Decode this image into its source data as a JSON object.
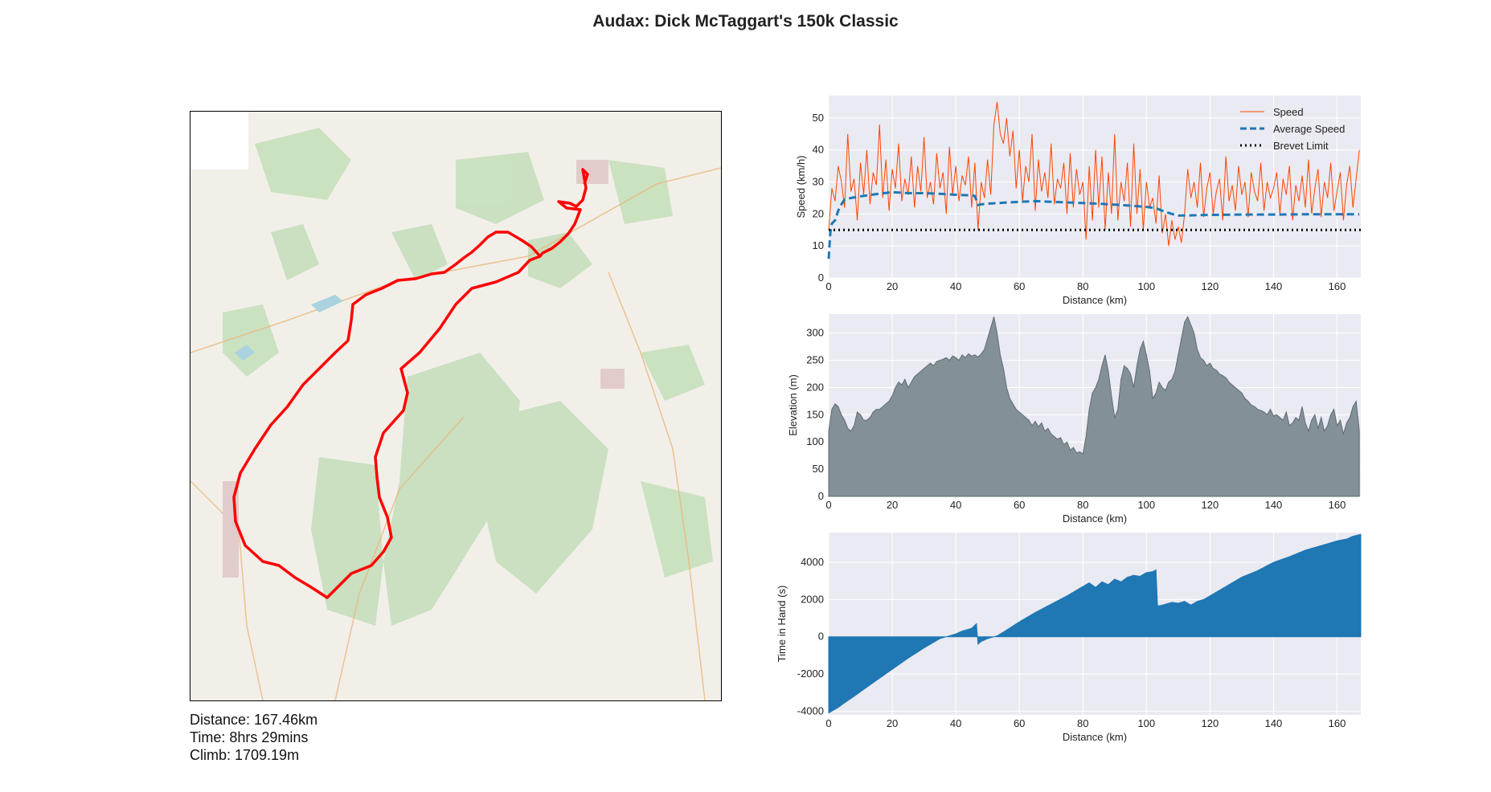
{
  "title": "Audax: Dick McTaggart's 150k Classic",
  "stats": {
    "distance": "Distance: 167.46km",
    "time": "Time: 8hrs 29mins",
    "climb": "Climb: 1709.19m"
  },
  "colors": {
    "speed": "#ff4500",
    "avg_speed": "#1f77b4",
    "brevet": "#000000",
    "elevation": "#7d8b8f",
    "time_in_hand": "#1f77b4",
    "route": "#ff0000",
    "plot_bg": "#eaeaf2"
  },
  "chart_data": [
    {
      "type": "line",
      "xlabel": "Distance (km)",
      "ylabel": "Speed (km/h)",
      "xlim": [
        0,
        167.46
      ],
      "ylim": [
        0,
        57
      ],
      "xticks": [
        0,
        20,
        40,
        60,
        80,
        100,
        120,
        140,
        160
      ],
      "yticks": [
        0,
        10,
        20,
        30,
        40,
        50
      ],
      "legend_position": "top-right",
      "series": [
        {
          "name": "Speed",
          "style": "line",
          "x": [
            0,
            1,
            2,
            3,
            4,
            5,
            6,
            7,
            8,
            9,
            10,
            11,
            12,
            13,
            14,
            15,
            16,
            17,
            18,
            19,
            20,
            21,
            22,
            23,
            24,
            25,
            26,
            27,
            28,
            29,
            30,
            31,
            32,
            33,
            34,
            35,
            36,
            37,
            38,
            39,
            40,
            41,
            42,
            43,
            44,
            45,
            46,
            47,
            48,
            49,
            50,
            51,
            52,
            53,
            54,
            55,
            56,
            57,
            58,
            59,
            60,
            61,
            62,
            63,
            64,
            65,
            66,
            67,
            68,
            69,
            70,
            71,
            72,
            73,
            74,
            75,
            76,
            77,
            78,
            79,
            80,
            81,
            82,
            83,
            84,
            85,
            86,
            87,
            88,
            89,
            90,
            91,
            92,
            93,
            94,
            95,
            96,
            97,
            98,
            99,
            100,
            101,
            102,
            103,
            104,
            105,
            106,
            107,
            108,
            109,
            110,
            111,
            112,
            113,
            114,
            115,
            116,
            117,
            118,
            119,
            120,
            121,
            122,
            123,
            124,
            125,
            126,
            127,
            128,
            129,
            130,
            131,
            132,
            133,
            134,
            135,
            136,
            137,
            138,
            139,
            140,
            141,
            142,
            143,
            144,
            145,
            146,
            147,
            148,
            149,
            150,
            151,
            152,
            153,
            154,
            155,
            156,
            157,
            158,
            159,
            160,
            161,
            162,
            163,
            164,
            165,
            166,
            167
          ],
          "y": [
            15,
            28,
            24,
            35,
            30,
            22,
            45,
            27,
            31,
            18,
            36,
            26,
            40,
            23,
            33,
            29,
            48,
            25,
            37,
            21,
            34,
            28,
            42,
            24,
            31,
            26,
            38,
            22,
            35,
            27,
            44,
            25,
            30,
            23,
            39,
            28,
            33,
            20,
            41,
            26,
            35,
            24,
            32,
            29,
            38,
            22,
            36,
            15,
            30,
            25,
            37,
            26,
            48,
            55,
            45,
            42,
            50,
            38,
            46,
            28,
            40,
            24,
            35,
            30,
            45,
            21,
            37,
            27,
            33,
            25,
            42,
            23,
            31,
            28,
            36,
            20,
            39,
            22,
            34,
            26,
            30,
            12,
            35,
            18,
            40,
            22,
            38,
            15,
            33,
            20,
            45,
            18,
            30,
            24,
            36,
            16,
            42,
            20,
            34,
            15,
            30,
            22,
            25,
            17,
            32,
            14,
            20,
            10,
            18,
            12,
            16,
            11,
            20,
            34,
            25,
            30,
            22,
            36,
            19,
            28,
            33,
            20,
            27,
            31,
            18,
            38,
            24,
            29,
            21,
            35,
            26,
            30,
            19,
            33,
            27,
            24,
            36,
            21,
            30,
            25,
            28,
            33,
            20,
            31,
            26,
            35,
            18,
            29,
            24,
            32,
            22,
            37,
            20,
            28,
            34,
            19,
            30,
            25,
            36,
            21,
            27,
            33,
            18,
            29,
            35,
            22,
            31,
            40
          ]
        },
        {
          "name": "Average Speed",
          "style": "dashed",
          "x": [
            0,
            0.5,
            1,
            2,
            3,
            4,
            5,
            7,
            10,
            15,
            20,
            25,
            30,
            35,
            40,
            45,
            46,
            47,
            48,
            50,
            55,
            60,
            65,
            70,
            75,
            80,
            85,
            90,
            95,
            100,
            103,
            105,
            108,
            110,
            115,
            120,
            130,
            140,
            150,
            160,
            167
          ],
          "y": [
            6,
            14,
            17,
            18,
            21,
            23,
            24.5,
            25,
            25.5,
            26.2,
            26.8,
            26.5,
            26.5,
            26.3,
            26,
            25.8,
            25.6,
            22.8,
            23,
            23.2,
            23.5,
            23.8,
            24,
            23.8,
            23.6,
            23.4,
            23.2,
            22.9,
            22.6,
            22.2,
            21.8,
            21,
            20,
            19.5,
            19.6,
            19.7,
            19.8,
            19.8,
            19.9,
            19.9,
            19.9
          ]
        },
        {
          "name": "Brevet Limit",
          "style": "dotted",
          "x": [
            0,
            167.46
          ],
          "y": [
            15,
            15
          ]
        }
      ]
    },
    {
      "type": "area",
      "xlabel": "Distance (km)",
      "ylabel": "Elevation (m)",
      "xlim": [
        0,
        167.46
      ],
      "ylim": [
        0,
        335
      ],
      "xticks": [
        0,
        20,
        40,
        60,
        80,
        100,
        120,
        140,
        160
      ],
      "yticks": [
        0,
        50,
        100,
        150,
        200,
        250,
        300
      ],
      "series": [
        {
          "name": "",
          "x": [
            0,
            1,
            2,
            3,
            4,
            5,
            6,
            7,
            8,
            9,
            10,
            11,
            12,
            13,
            14,
            15,
            16,
            17,
            18,
            19,
            20,
            21,
            22,
            23,
            24,
            25,
            26,
            27,
            28,
            29,
            30,
            31,
            32,
            33,
            34,
            35,
            36,
            37,
            38,
            39,
            40,
            41,
            42,
            43,
            44,
            45,
            46,
            47,
            48,
            49,
            50,
            51,
            52,
            53,
            54,
            55,
            56,
            57,
            58,
            59,
            60,
            61,
            62,
            63,
            64,
            65,
            66,
            67,
            68,
            69,
            70,
            71,
            72,
            73,
            74,
            75,
            76,
            77,
            78,
            79,
            80,
            81,
            82,
            83,
            84,
            85,
            86,
            87,
            88,
            89,
            90,
            91,
            92,
            93,
            94,
            95,
            96,
            97,
            98,
            99,
            100,
            101,
            102,
            103,
            104,
            105,
            106,
            107,
            108,
            109,
            110,
            111,
            112,
            113,
            114,
            115,
            116,
            117,
            118,
            119,
            120,
            121,
            122,
            123,
            124,
            125,
            126,
            127,
            128,
            129,
            130,
            131,
            132,
            133,
            134,
            135,
            136,
            137,
            138,
            139,
            140,
            141,
            142,
            143,
            144,
            145,
            146,
            147,
            148,
            149,
            150,
            151,
            152,
            153,
            154,
            155,
            156,
            157,
            158,
            159,
            160,
            161,
            162,
            163,
            164,
            165,
            166,
            167
          ],
          "y": [
            120,
            160,
            170,
            165,
            150,
            140,
            125,
            120,
            130,
            155,
            150,
            140,
            140,
            145,
            155,
            160,
            160,
            165,
            170,
            175,
            185,
            200,
            210,
            205,
            215,
            200,
            210,
            220,
            225,
            230,
            235,
            240,
            245,
            240,
            248,
            250,
            252,
            255,
            250,
            258,
            255,
            250,
            260,
            255,
            262,
            258,
            260,
            256,
            262,
            270,
            290,
            310,
            330,
            300,
            260,
            235,
            200,
            180,
            170,
            160,
            155,
            150,
            145,
            140,
            130,
            138,
            128,
            135,
            120,
            125,
            115,
            110,
            105,
            108,
            95,
            100,
            85,
            90,
            80,
            82,
            78,
            110,
            160,
            190,
            200,
            215,
            240,
            260,
            230,
            185,
            145,
            160,
            215,
            240,
            235,
            225,
            200,
            240,
            270,
            285,
            260,
            230,
            180,
            190,
            210,
            200,
            195,
            210,
            215,
            230,
            260,
            290,
            320,
            330,
            315,
            300,
            270,
            255,
            250,
            240,
            245,
            235,
            232,
            225,
            222,
            218,
            210,
            205,
            200,
            195,
            190,
            180,
            175,
            168,
            165,
            160,
            158,
            155,
            150,
            160,
            148,
            150,
            145,
            140,
            155,
            130,
            135,
            145,
            140,
            165,
            135,
            120,
            140,
            150,
            125,
            145,
            120,
            130,
            150,
            160,
            130,
            140,
            115,
            135,
            145,
            165,
            175,
            120
          ]
        }
      ]
    },
    {
      "type": "area",
      "xlabel": "Distance (km)",
      "ylabel": "Time in Hand (s)",
      "xlim": [
        0,
        167.46
      ],
      "ylim": [
        -4200,
        5600
      ],
      "xticks": [
        0,
        20,
        40,
        60,
        80,
        100,
        120,
        140,
        160
      ],
      "yticks": [
        -4000,
        -2000,
        0,
        2000,
        4000
      ],
      "series": [
        {
          "name": "",
          "x": [
            0,
            1,
            3,
            5,
            8,
            10,
            15,
            20,
            25,
            30,
            35,
            40,
            42,
            45,
            46.5,
            47,
            48,
            50,
            53,
            55,
            60,
            65,
            70,
            75,
            80,
            82,
            84,
            86,
            88,
            90,
            92,
            94,
            96,
            98,
            100,
            102,
            103,
            103.5,
            105,
            108,
            110,
            112,
            114,
            116,
            118,
            120,
            125,
            130,
            135,
            140,
            145,
            150,
            155,
            160,
            163,
            165,
            167.46
          ],
          "y": [
            -4100,
            -4000,
            -3800,
            -3550,
            -3200,
            -2950,
            -2350,
            -1750,
            -1150,
            -600,
            -100,
            150,
            300,
            450,
            700,
            -400,
            -250,
            -100,
            50,
            250,
            800,
            1300,
            1750,
            2200,
            2700,
            2900,
            2650,
            2950,
            2800,
            3100,
            2950,
            3200,
            3300,
            3250,
            3450,
            3500,
            3600,
            1650,
            1700,
            1850,
            1800,
            1900,
            1700,
            1900,
            2000,
            2200,
            2700,
            3200,
            3550,
            4000,
            4300,
            4650,
            4900,
            5150,
            5250,
            5400,
            5500
          ]
        }
      ]
    }
  ]
}
